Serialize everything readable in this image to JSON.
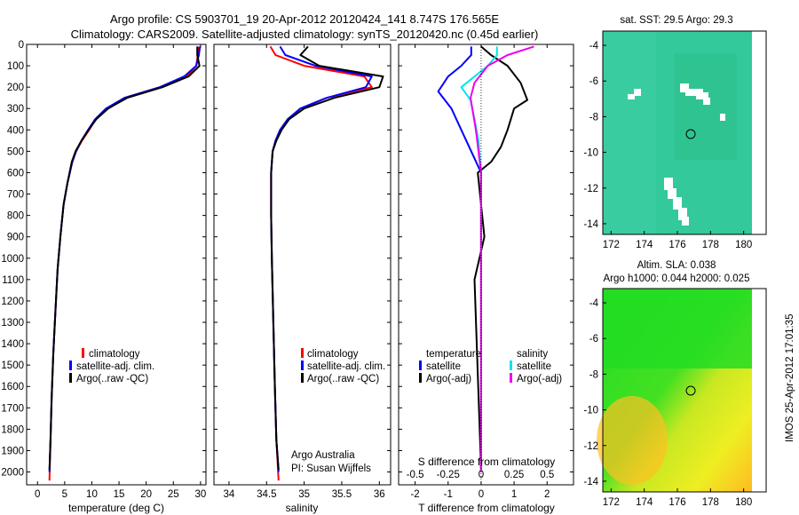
{
  "header": {
    "line1": "Argo profile: CS 5903701_19 20-Apr-2012 20120424_141 8.747S 176.565E",
    "line2": "Climatology: CARS2009. Satellite-adjusted climatology: synTS_20120420.nc (0.45d earlier)"
  },
  "colors": {
    "climatology": "#ff0000",
    "satellite": "#0000ff",
    "argo": "#000000",
    "sat_salinity": "#00e5ee",
    "argo_salinity_adj": "#ee00ee",
    "sst_ocean": "#33cc99",
    "sla_green": "#22dd22",
    "sla_yellow": "#eeee22",
    "sla_orange": "#ffbb22"
  },
  "depth_axis": {
    "ticks": [
      0,
      100,
      200,
      300,
      400,
      500,
      600,
      700,
      800,
      900,
      1000,
      1100,
      1200,
      1300,
      1400,
      1500,
      1600,
      1700,
      1800,
      1900,
      2000
    ],
    "range": [
      0,
      2060
    ]
  },
  "panels": {
    "temperature": {
      "xlabel": "temperature (deg C)",
      "xticks": [
        0,
        5,
        10,
        15,
        20,
        25,
        30
      ],
      "legend": [
        "climatology",
        "satellite-adj. clim.",
        "Argo(..raw -QC)"
      ]
    },
    "salinity": {
      "xlabel": "salinity",
      "xticks": [
        "34",
        "34.5",
        "35",
        "35.5",
        "36"
      ],
      "legend": [
        "climatology",
        "satellite-adj. clim.",
        "Argo(..raw -QC)"
      ],
      "credit1": "Argo Australia",
      "credit2": "PI: Susan Wijffels"
    },
    "difference": {
      "top_label": "S difference from climatology",
      "top_ticks": [
        "-0.5",
        "-0.25",
        "0",
        "0.25",
        "0.5"
      ],
      "xlabel": "T difference from climatology",
      "xticks": [
        "-2",
        "-1",
        "0",
        "1",
        "2"
      ],
      "legend_temp_title": "temperature",
      "legend_sal_title": "salinity",
      "legend_temp": [
        "satellite",
        "Argo(-adj)"
      ],
      "legend_sal": [
        "satellite",
        "Argo(-adj)"
      ]
    }
  },
  "maps": {
    "sst": {
      "title": "sat. SST: 29.5 Argo: 29.3",
      "xticks": [
        "172",
        "174",
        "176",
        "178",
        "180"
      ],
      "yticks": [
        "-4",
        "-6",
        "-8",
        "-10",
        "-12",
        "-14"
      ]
    },
    "sla": {
      "title1": "Altim. SLA: 0.038",
      "title2": "Argo h1000: 0.044 h2000: 0.025",
      "xticks": [
        "172",
        "174",
        "176",
        "178",
        "180"
      ],
      "yticks": [
        "-4",
        "-6",
        "-8",
        "-10",
        "-12",
        "-14"
      ]
    },
    "footer": "IMOS 25-Apr-2012 17:01:35"
  },
  "chart_data": [
    {
      "type": "line",
      "xlabel": "temperature (deg C)",
      "xlim": [
        -2,
        31
      ],
      "ylim": [
        2060,
        0
      ],
      "series": [
        {
          "name": "climatology",
          "color": "#ff0000",
          "x": [
            29.6,
            29.5,
            29.2,
            27.5,
            22.5,
            16.0,
            12.8,
            10.7,
            9.5,
            8.2,
            7.1,
            6.4,
            5.5,
            4.8,
            4.2,
            3.7,
            3.3,
            2.9,
            2.6,
            2.4,
            2.2
          ],
          "y": [
            10,
            50,
            100,
            150,
            200,
            250,
            300,
            350,
            400,
            450,
            500,
            550,
            650,
            750,
            900,
            1050,
            1250,
            1450,
            1650,
            1850,
            2040
          ]
        },
        {
          "name": "satellite-adj. clim.",
          "color": "#0000ff",
          "x": [
            29.9,
            29.7,
            29.2,
            27.0,
            22.5,
            16.0,
            12.6,
            10.6,
            9.3,
            8.1,
            7.1,
            6.4,
            5.5,
            4.8,
            4.2,
            3.7,
            3.3,
            2.9,
            2.6,
            2.4,
            2.2
          ],
          "y": [
            10,
            50,
            100,
            150,
            200,
            250,
            300,
            350,
            400,
            450,
            500,
            550,
            650,
            750,
            900,
            1050,
            1250,
            1450,
            1650,
            1850,
            2000
          ]
        },
        {
          "name": "Argo(..raw -QC)",
          "color": "#000000",
          "x": [
            29.4,
            29.4,
            29.8,
            27.8,
            23.0,
            16.5,
            13.0,
            10.8,
            9.4,
            8.1,
            7.0,
            6.3,
            5.5,
            4.8,
            4.2,
            3.7,
            3.3,
            2.9,
            2.6,
            2.4,
            2.2
          ],
          "y": [
            10,
            50,
            100,
            150,
            200,
            250,
            300,
            350,
            400,
            450,
            500,
            550,
            650,
            750,
            900,
            1050,
            1250,
            1450,
            1650,
            1850,
            1990
          ]
        }
      ]
    },
    {
      "type": "line",
      "xlabel": "salinity",
      "xlim": [
        33.8,
        36.15
      ],
      "ylim": [
        2060,
        0
      ],
      "series": [
        {
          "name": "climatology",
          "color": "#ff0000",
          "x": [
            34.55,
            34.62,
            35.0,
            35.8,
            35.9,
            35.3,
            34.95,
            34.78,
            34.68,
            34.62,
            34.58,
            34.56,
            34.56,
            34.57,
            34.59,
            34.61,
            34.63,
            34.66
          ],
          "y": [
            10,
            50,
            100,
            150,
            200,
            250,
            300,
            350,
            400,
            450,
            500,
            600,
            800,
            1000,
            1300,
            1600,
            1850,
            2040
          ]
        },
        {
          "name": "satellite-adj. clim.",
          "color": "#0000ff",
          "x": [
            34.68,
            34.75,
            35.15,
            35.9,
            35.82,
            35.3,
            34.95,
            34.78,
            34.68,
            34.62,
            34.58,
            34.56,
            34.56,
            34.57,
            34.59,
            34.61,
            34.63,
            34.66
          ],
          "y": [
            10,
            50,
            100,
            150,
            200,
            250,
            300,
            350,
            400,
            450,
            500,
            600,
            800,
            1000,
            1300,
            1600,
            1850,
            2000
          ]
        },
        {
          "name": "Argo(..raw -QC)",
          "color": "#000000",
          "x": [
            35.05,
            34.95,
            35.2,
            36.05,
            36.0,
            35.4,
            35.0,
            34.8,
            34.7,
            34.63,
            34.58,
            34.56,
            34.56,
            34.57,
            34.59,
            34.61,
            34.63,
            34.66
          ],
          "y": [
            10,
            50,
            100,
            150,
            200,
            250,
            300,
            350,
            400,
            450,
            500,
            600,
            800,
            1000,
            1300,
            1600,
            1850,
            1990
          ]
        }
      ]
    },
    {
      "type": "line",
      "xlabel": "T difference from climatology",
      "top_label": "S difference from climatology",
      "xlim": [
        -2.5,
        2.8
      ],
      "ylim": [
        2060,
        0
      ],
      "series": [
        {
          "name": "satellite",
          "quantity": "temperature",
          "color": "#0000ff",
          "x": [
            -0.3,
            -0.3,
            -0.6,
            -1.0,
            -1.3,
            -0.9,
            -0.6,
            -0.3,
            0.0,
            0.0,
            0.0,
            0.0
          ],
          "y": [
            10,
            50,
            100,
            150,
            220,
            300,
            400,
            500,
            600,
            1000,
            1500,
            2000
          ]
        },
        {
          "name": "Argo(-adj)",
          "quantity": "temperature",
          "color": "#000000",
          "x": [
            0.0,
            0.3,
            0.8,
            1.2,
            1.4,
            1.0,
            0.8,
            0.6,
            0.3,
            -0.1,
            0.1,
            -0.2,
            0.0
          ],
          "y": [
            10,
            50,
            100,
            180,
            260,
            300,
            400,
            480,
            550,
            600,
            900,
            1100,
            1990
          ]
        },
        {
          "name": "satellite",
          "quantity": "salinity",
          "color": "#00e5ee",
          "x": [
            0.12,
            0.12,
            0.05,
            -0.15,
            -0.08,
            -0.05,
            -0.02,
            0.0,
            0.0,
            0.0
          ],
          "y": [
            10,
            50,
            100,
            200,
            260,
            350,
            450,
            600,
            1000,
            2000
          ]
        },
        {
          "name": "Argo(-adj)",
          "quantity": "salinity",
          "color": "#ee00ee",
          "x": [
            0.4,
            0.2,
            0.05,
            -0.05,
            -0.08,
            -0.04,
            0.0,
            0.0
          ],
          "y": [
            10,
            50,
            100,
            180,
            250,
            400,
            600,
            2000
          ]
        }
      ]
    },
    {
      "type": "heatmap",
      "title": "sat. SST: 29.5 Argo: 29.3",
      "xlim": [
        171.5,
        180.5
      ],
      "ylim": [
        -14.6,
        -3.2
      ],
      "argo_position": [
        176.565,
        -8.747
      ]
    },
    {
      "type": "heatmap",
      "title": "Altim. SLA: 0.038",
      "xlim": [
        171.5,
        180.5
      ],
      "ylim": [
        -14.6,
        -3.2
      ],
      "argo_position": [
        176.565,
        -8.747
      ]
    }
  ]
}
